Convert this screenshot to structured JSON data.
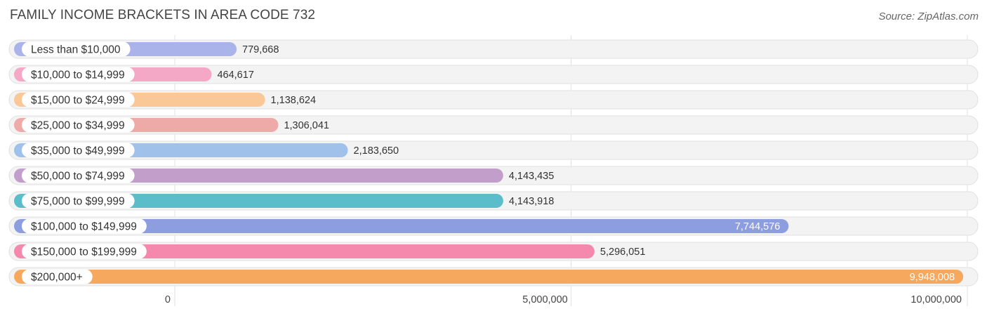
{
  "chart_data": {
    "type": "bar",
    "orientation": "horizontal",
    "title": "FAMILY INCOME BRACKETS IN AREA CODE 732",
    "source": "Source: ZipAtlas.com",
    "xlim": [
      0,
      10000000
    ],
    "xticks": [
      {
        "value": 0,
        "label": "0"
      },
      {
        "value": 5000000,
        "label": "5,000,000"
      },
      {
        "value": 10000000,
        "label": "10,000,000"
      }
    ],
    "categories": [
      "Less than $10,000",
      "$10,000 to $14,999",
      "$15,000 to $24,999",
      "$25,000 to $34,999",
      "$35,000 to $49,999",
      "$50,000 to $74,999",
      "$75,000 to $99,999",
      "$100,000 to $149,999",
      "$150,000 to $199,999",
      "$200,000+"
    ],
    "values": [
      779668,
      464617,
      1138624,
      1306041,
      2183650,
      4143435,
      4143918,
      7744576,
      5296051,
      9948008
    ],
    "value_labels": [
      "779,668",
      "464,617",
      "1,138,624",
      "1,306,041",
      "2,183,650",
      "4,143,435",
      "4,143,918",
      "7,744,576",
      "5,296,051",
      "9,948,008"
    ],
    "colors": [
      "#aab4ea",
      "#f5a8c6",
      "#f9c896",
      "#eeaaa6",
      "#9fc1ea",
      "#c29fca",
      "#5bbdc9",
      "#8c9de0",
      "#f489ad",
      "#f6a95e"
    ]
  }
}
